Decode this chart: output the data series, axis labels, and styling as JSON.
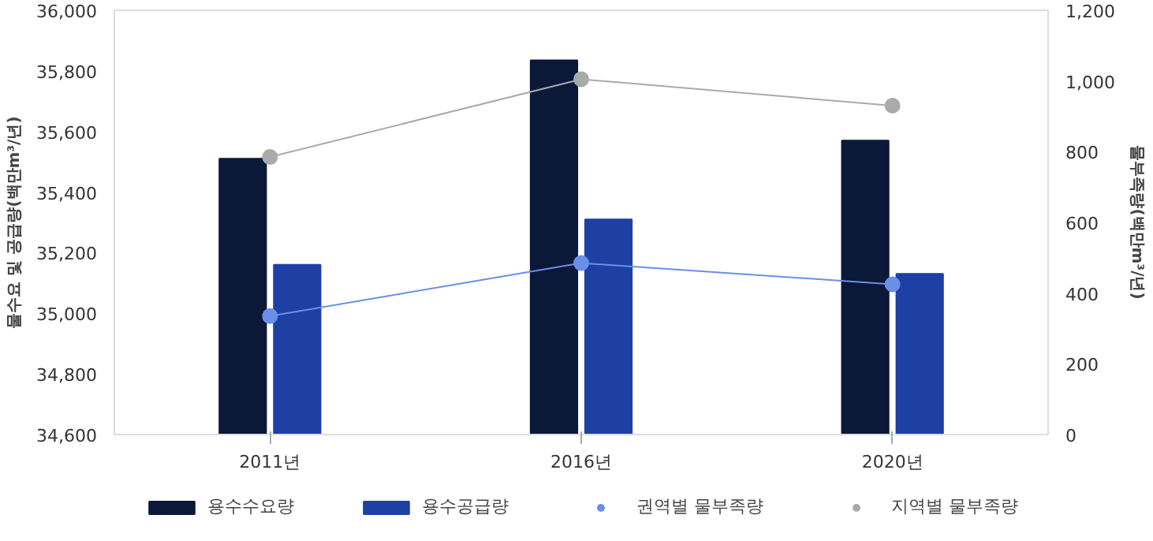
{
  "chart_data": {
    "type": "bar",
    "categories": [
      "2011년",
      "2016년",
      "2020년"
    ],
    "ylabel": "물수요 및 공급량(백만m³/년)",
    "y2label": "물부족량(백만m³/년)",
    "ylim": [
      34600,
      36000
    ],
    "yticks": [
      {
        "value": 34600,
        "label": "34,600"
      },
      {
        "value": 34800,
        "label": "34,800"
      },
      {
        "value": 35000,
        "label": "35,000"
      },
      {
        "value": 35200,
        "label": "35,200"
      },
      {
        "value": 35400,
        "label": "35,400"
      },
      {
        "value": 35600,
        "label": "35,600"
      },
      {
        "value": 35800,
        "label": "35,800"
      },
      {
        "value": 36000,
        "label": "36,000"
      }
    ],
    "y2lim": [
      0,
      1200
    ],
    "y2ticks": [
      0,
      200,
      400,
      600,
      800,
      {
        "value": 1000,
        "label": "1,000"
      },
      {
        "value": 1200,
        "label": "1,200"
      }
    ],
    "series": [
      {
        "name": "용수수요량",
        "color": "#0b1838",
        "values": [
          35510,
          35835,
          35570
        ]
      },
      {
        "name": "용수공급량",
        "color": "#1e40a4",
        "values": [
          35160,
          35310,
          35130
        ]
      },
      {
        "name": "권역별 물부족량",
        "type": "line",
        "axis": "y2",
        "color": "#6a8fe8",
        "values": [
          335,
          485,
          425
        ]
      },
      {
        "name": "지역별 물부족량",
        "type": "line",
        "axis": "y2",
        "color": "#aaaaaa",
        "values": [
          785,
          1005,
          930
        ]
      }
    ],
    "marker": "circle",
    "grid": false,
    "legend": "bottom"
  }
}
